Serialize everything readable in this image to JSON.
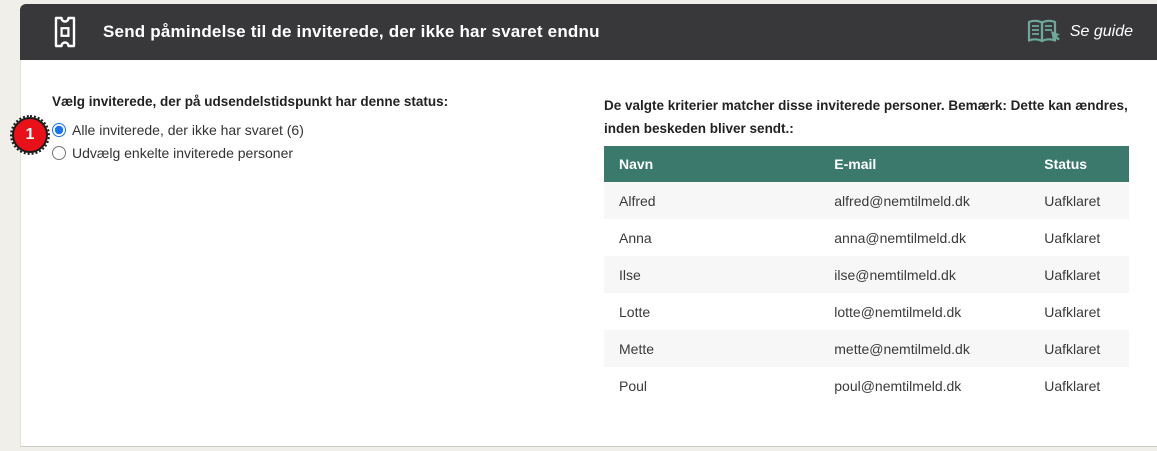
{
  "header": {
    "title": "Send påmindelse til de inviterede, der ikke har svaret endnu",
    "guide_label": "Se guide",
    "background": "#38383a",
    "icon_color": "#ffffff",
    "guide_icon_color": "#6fa89a"
  },
  "step_badge": {
    "number": "1",
    "color": "#e8111a"
  },
  "left_section": {
    "heading": "Vælg inviterede, der på udsendelstidspunkt har denne status:",
    "options": [
      {
        "label": "Alle inviterede, der ikke har svaret (6)",
        "selected": true
      },
      {
        "label": "Udvælg enkelte inviterede personer",
        "selected": false
      }
    ],
    "radio_accent_color": "#1a73e8"
  },
  "right_section": {
    "heading": "De valgte kriterier matcher disse inviterede personer. Bemærk: Dette kan ændres, inden beskeden bliver sendt.:",
    "table": {
      "header_background": "#3a796c",
      "columns": [
        "Navn",
        "E-mail",
        "Status"
      ],
      "rows": [
        {
          "name": "Alfred",
          "email": "alfred@nemtilmeld.dk",
          "status": "Uafklaret"
        },
        {
          "name": "Anna",
          "email": "anna@nemtilmeld.dk",
          "status": "Uafklaret"
        },
        {
          "name": "Ilse",
          "email": "ilse@nemtilmeld.dk",
          "status": "Uafklaret"
        },
        {
          "name": "Lotte",
          "email": "lotte@nemtilmeld.dk",
          "status": "Uafklaret"
        },
        {
          "name": "Mette",
          "email": "mette@nemtilmeld.dk",
          "status": "Uafklaret"
        },
        {
          "name": "Poul",
          "email": "poul@nemtilmeld.dk",
          "status": "Uafklaret"
        }
      ]
    }
  }
}
